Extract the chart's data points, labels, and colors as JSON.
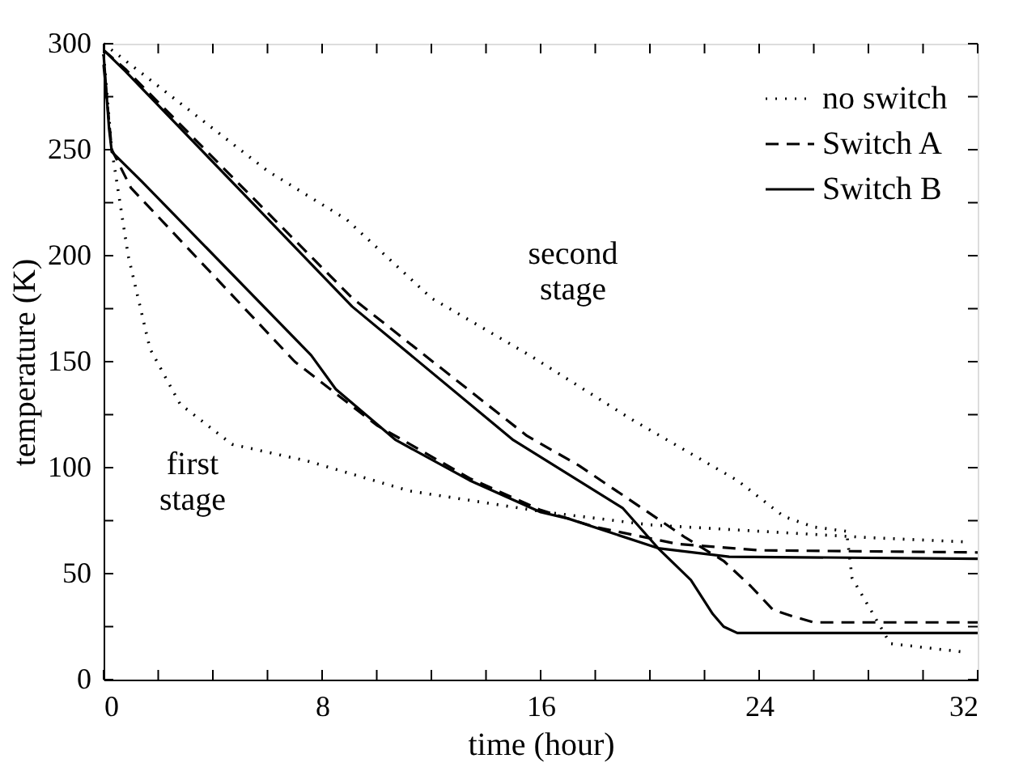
{
  "chart_data": {
    "type": "line",
    "xlabel": "time (hour)",
    "ylabel": "temperature (K)",
    "xlim": [
      0,
      32
    ],
    "ylim": [
      0,
      300
    ],
    "xticks": [
      0,
      {
        "value": 2,
        "label": null
      },
      {
        "value": 4,
        "label": null
      },
      {
        "value": 6,
        "label": null
      },
      8,
      {
        "value": 10,
        "label": null
      },
      {
        "value": 12,
        "label": null
      },
      {
        "value": 14,
        "label": null
      },
      16,
      {
        "value": 18,
        "label": null
      },
      {
        "value": 20,
        "label": null
      },
      {
        "value": 22,
        "label": null
      },
      24,
      {
        "value": 26,
        "label": null
      },
      {
        "value": 28,
        "label": null
      },
      {
        "value": 30,
        "label": null
      },
      32
    ],
    "yticks": [
      0,
      {
        "value": 25,
        "label": null
      },
      50,
      {
        "value": 75,
        "label": null
      },
      100,
      {
        "value": 125,
        "label": null
      },
      150,
      {
        "value": 175,
        "label": null
      },
      200,
      {
        "value": 225,
        "label": null
      },
      250,
      {
        "value": 275,
        "label": null
      },
      300
    ],
    "grid": false,
    "legend": "top right",
    "marker": "none",
    "annotations": [
      "second stage",
      "first stage"
    ],
    "series": [
      {
        "name": "no switch",
        "color": "#000000",
        "line_style": "dotted",
        "x": [
          0,
          0.3,
          0.9,
          1.7,
          2.8,
          4.7,
          7.5,
          11.2,
          16.2,
          20,
          24,
          28,
          31.5
        ],
        "values": [
          295,
          250,
          200,
          156,
          130,
          111,
          103,
          89,
          79,
          73,
          70,
          67,
          65
        ]
      },
      {
        "name": "Switch A",
        "color": "#000000",
        "line_style": "dashed",
        "x": [
          0,
          0.3,
          1,
          7,
          10,
          13.4,
          16,
          18,
          21,
          24,
          32
        ],
        "values": [
          290,
          250,
          232,
          150,
          120,
          95,
          80,
          72,
          64,
          61,
          60
        ]
      },
      {
        "name": "Switch B",
        "color": "#000000",
        "line_style": "solid",
        "x": [
          0,
          0.2,
          0.3,
          1.4,
          7.6,
          8.5,
          10.7,
          13.4,
          16,
          17,
          20.3,
          22.9,
          32
        ],
        "values": [
          295,
          260,
          249,
          235,
          153,
          137,
          113,
          94,
          79,
          76,
          62,
          58,
          57
        ]
      },
      {
        "color": "#000000",
        "line_style": "dotted",
        "x": [
          0,
          3,
          6,
          8.9,
          12,
          15.6,
          19.3,
          23.2,
          24.9,
          26,
          27.2,
          27.4,
          28.8,
          31.5
        ],
        "values": [
          300,
          270,
          240,
          217,
          180,
          153,
          123,
          94,
          77,
          72,
          70,
          48,
          17,
          13
        ]
      },
      {
        "color": "#000000",
        "line_style": "dashed",
        "x": [
          0,
          0.8,
          9.1,
          15.5,
          17.4,
          19.7,
          21.3,
          22.7,
          23.7,
          24.5,
          25.2,
          26,
          32
        ],
        "values": [
          297,
          288,
          180,
          115,
          101,
          81,
          67,
          56,
          44,
          33,
          30,
          27,
          27
        ]
      },
      {
        "color": "#000000",
        "line_style": "solid",
        "x": [
          0,
          0.8,
          9.1,
          15,
          19,
          20.3,
          21.5,
          22.3,
          22.7,
          23.2,
          32
        ],
        "values": [
          297,
          287,
          176,
          113,
          81,
          62,
          47,
          31,
          25,
          22,
          22
        ]
      }
    ]
  }
}
